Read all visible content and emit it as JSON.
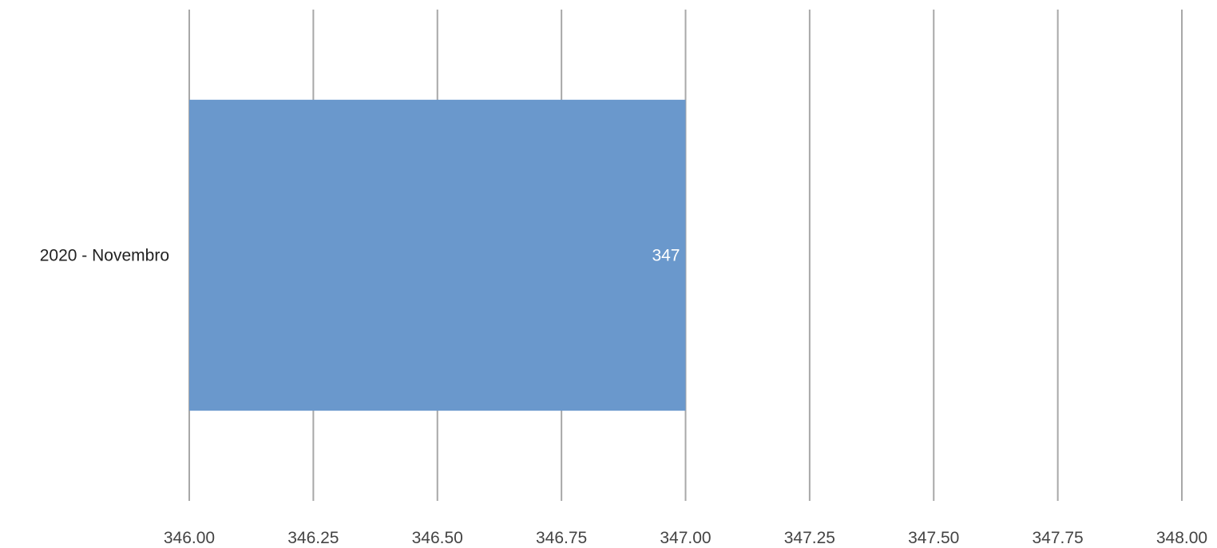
{
  "chart_data": {
    "type": "bar",
    "orientation": "horizontal",
    "categories": [
      "2020 - Novembro"
    ],
    "series": [
      {
        "values": [
          347
        ],
        "data_labels": [
          "347"
        ],
        "color": "#6a98cc"
      }
    ],
    "xlim": [
      346.0,
      348.0
    ],
    "x_ticks": [
      346.0,
      346.25,
      346.5,
      346.75,
      347.0,
      347.25,
      347.5,
      347.75,
      348.0
    ],
    "x_tick_labels": [
      "346.00",
      "346.25",
      "346.50",
      "346.75",
      "347.00",
      "347.25",
      "347.50",
      "347.75",
      "348.00"
    ],
    "title": "",
    "xlabel": "",
    "ylabel": "",
    "grid": true,
    "legend": "none"
  },
  "colors": {
    "bar": "#6a98cc",
    "gridline": "#a8a8a8",
    "tick_text": "#444444",
    "category_text": "#222222",
    "data_label_text": "#ffffff"
  }
}
